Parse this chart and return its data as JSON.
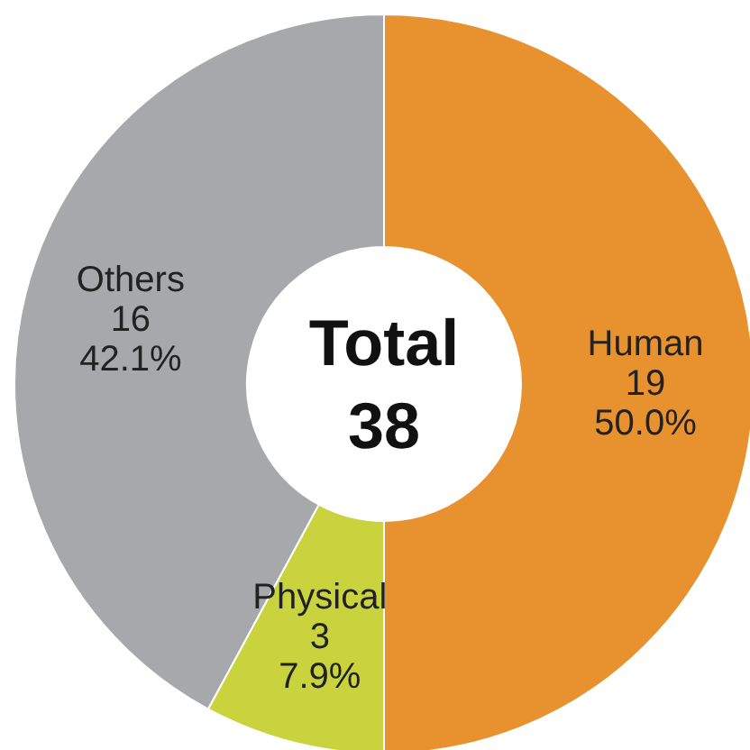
{
  "chart_data": {
    "type": "donut",
    "categories": [
      "Human",
      "Physical",
      "Others"
    ],
    "values": [
      19,
      3,
      16
    ],
    "colors": [
      "#e8912f",
      "#c9d33e",
      "#a7a8ab"
    ],
    "value_labels": [
      "19\n50.0%",
      "3\n7.9%",
      "16\n42.1%"
    ],
    "annotations": [
      "Total",
      "38"
    ]
  }
}
